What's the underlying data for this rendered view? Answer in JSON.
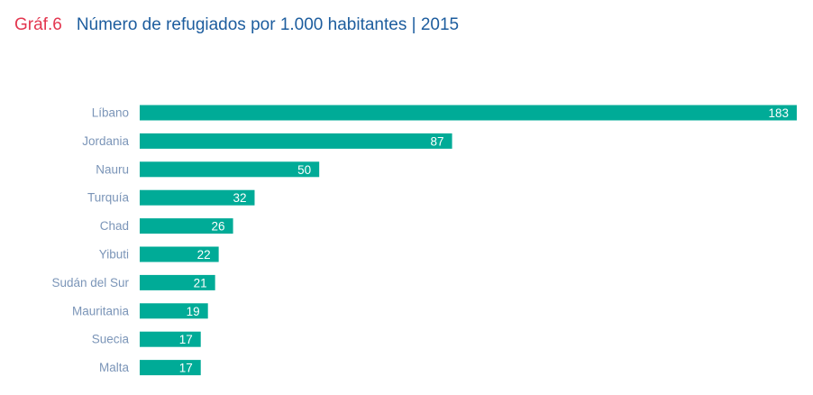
{
  "header": {
    "tag": "Gráf.6",
    "title": "Número de refugiados por 1.000 habitantes | 2015"
  },
  "colors": {
    "bar": "#00ab97",
    "tag": "#e3364f",
    "title": "#1d5d9e",
    "category_label": "#7b95b8",
    "value_label": "#ffffff"
  },
  "chart_data": {
    "type": "bar",
    "orientation": "horizontal",
    "title": "Número de refugiados por 1.000 habitantes | 2015",
    "categories": [
      "Líbano",
      "Jordania",
      "Nauru",
      "Turquía",
      "Chad",
      "Yibuti",
      "Sudán del Sur",
      "Mauritania",
      "Suecia",
      "Malta"
    ],
    "values": [
      183,
      87,
      50,
      32,
      26,
      22,
      21,
      19,
      17,
      17
    ],
    "xlabel": "",
    "ylabel": "",
    "xlim": [
      0,
      183
    ],
    "grid": false,
    "legend": "none",
    "data_labels": true
  }
}
